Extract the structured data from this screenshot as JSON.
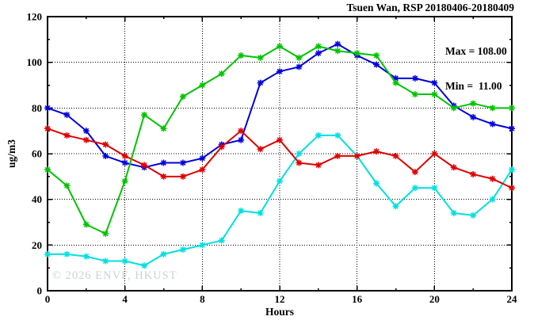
{
  "header": {
    "title": "Tsuen Wan, RSP 20180406-20180409"
  },
  "legend": {
    "max_line": "Max = 108.00",
    "min_line": "Min =  11.00"
  },
  "watermark": "© 2026 ENVF, HKUST",
  "chart_data": {
    "type": "line",
    "title": "Tsuen Wan, RSP 20180406-20180409",
    "xlabel": "Hours",
    "ylabel": "ug/m3",
    "xlim": [
      0,
      24
    ],
    "ylim": [
      0,
      120
    ],
    "xticks": [
      0,
      4,
      8,
      12,
      16,
      20,
      24
    ],
    "yticks": [
      0,
      20,
      40,
      60,
      80,
      100,
      120
    ],
    "x_minor_tick_step": 2,
    "y_minor_tick_step": 10,
    "grid": true,
    "legend_position": "top-right-inside",
    "stats": {
      "max": 108.0,
      "min": 11.0
    },
    "x": [
      0,
      1,
      2,
      3,
      4,
      5,
      6,
      7,
      8,
      9,
      10,
      11,
      12,
      13,
      14,
      15,
      16,
      17,
      18,
      19,
      20,
      21,
      22,
      23,
      24
    ],
    "series": [
      {
        "name": "blue",
        "color": "#0000dd",
        "values": [
          80,
          77,
          70,
          59,
          56,
          54,
          56,
          56,
          58,
          64,
          66,
          91,
          96,
          98,
          104,
          108,
          103,
          99,
          93,
          93,
          91,
          81,
          76,
          73,
          71
        ]
      },
      {
        "name": "cyan",
        "color": "#00e0e0",
        "values": [
          16,
          16,
          15,
          13,
          13,
          11,
          16,
          18,
          20,
          22,
          35,
          34,
          48,
          60,
          68,
          68,
          59,
          47,
          37,
          45,
          45,
          34,
          33,
          40,
          53
        ]
      },
      {
        "name": "red",
        "color": "#e00000",
        "values": [
          71,
          68,
          66,
          64,
          59,
          55,
          50,
          50,
          53,
          63,
          70,
          62,
          66,
          56,
          55,
          59,
          59,
          61,
          59,
          52,
          60,
          54,
          51,
          49,
          45
        ]
      },
      {
        "name": "green",
        "color": "#00c400",
        "values": [
          53,
          46,
          29,
          25,
          48,
          77,
          71,
          85,
          90,
          95,
          103,
          102,
          107,
          102,
          107,
          105,
          104,
          103,
          91,
          86,
          86,
          80,
          82,
          80,
          80
        ]
      }
    ]
  }
}
